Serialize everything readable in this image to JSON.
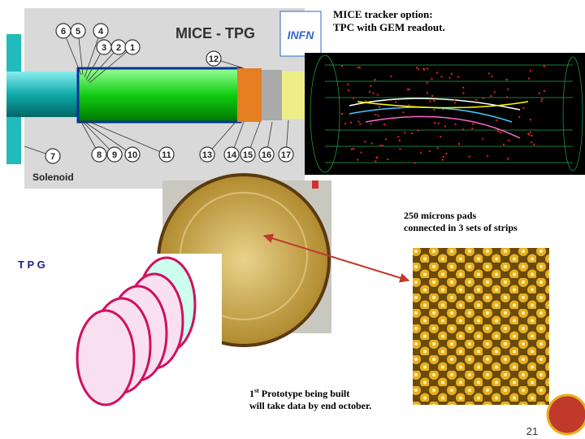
{
  "title_lines": [
    "MICE tracker option:",
    "TPC with GEM readout."
  ],
  "diagram": {
    "title": "MICE - TPG",
    "callouts": [
      "6",
      "5",
      "4",
      "3",
      "2",
      "1",
      "12",
      "7",
      "8",
      "9",
      "10",
      "11",
      "13",
      "14",
      "15",
      "16",
      "17"
    ],
    "caption": "Solenoid"
  },
  "sketch_title": "T P G",
  "pads_note": [
    "250 microns pads",
    "connected in 3 sets of strips"
  ],
  "prototype_note": {
    "ordinal": "1",
    "ordinal_suffix": "st",
    "line1_rest": "Prototype being built",
    "line2": "will take data by end october."
  },
  "page_number": "21"
}
